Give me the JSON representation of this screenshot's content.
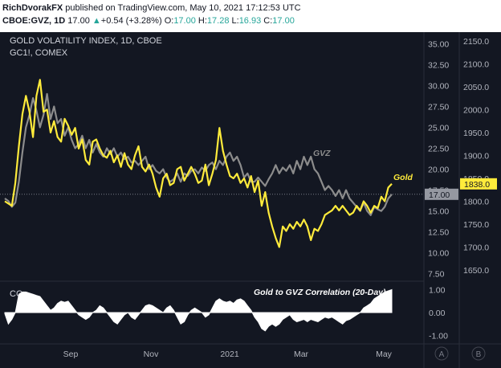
{
  "header": {
    "author": "RichDvorakFX",
    "published": "published on TradingView.com, May 10, 2021 17:12:53 UTC",
    "symbol": "CBOE:GVZ, 1D",
    "last": "17.00",
    "arrow": "▲",
    "change": "+0.54 (+3.28%)",
    "open_label": "O:",
    "open": "17.00",
    "high_label": "H:",
    "high": "17.28",
    "low_label": "L:",
    "low": "16.93",
    "close_label": "C:",
    "close": "17.00"
  },
  "chart_data": {
    "type": "line",
    "title": "GOLD VOLATILITY INDEX, 1D, CBOE",
    "subtitle": "GC1!, COMEX",
    "x_tick_labels": [
      "Sep",
      "Nov",
      "2021",
      "Mar",
      "May"
    ],
    "left_axis_labels": [
      "A",
      "B"
    ],
    "y_left": {
      "range": [
        6.8,
        36.0
      ],
      "tick_labels": [
        "35.00",
        "32.50",
        "30.00",
        "27.50",
        "25.00",
        "22.50",
        "20.00",
        "17.50",
        "15.00",
        "12.50",
        "10.00",
        "7.50"
      ],
      "tick_values": [
        35,
        32.5,
        30,
        27.5,
        25,
        22.5,
        20,
        17.5,
        15,
        12.5,
        10,
        7.5
      ],
      "last_label": "17.00",
      "last_value": 17.0
    },
    "y_right": {
      "range": [
        1629,
        2162
      ],
      "tick_labels": [
        "2150.0",
        "2100.0",
        "2050.0",
        "2000.0",
        "1950.0",
        "1900.0",
        "1850.0",
        "1800.0",
        "1750.0",
        "1700.0",
        "1650.0"
      ],
      "tick_values": [
        2150,
        2100,
        2050,
        2000,
        1950,
        1900,
        1850,
        1800,
        1750,
        1700,
        1650
      ],
      "last_label": "1838.0",
      "last_value": 1838.0
    },
    "series": [
      {
        "name": "GVZ",
        "axis": "left",
        "color": "#8c8c8c",
        "values": [
          16.5,
          16.2,
          15.5,
          16.0,
          18.5,
          22.0,
          25.0,
          26.5,
          28.5,
          27.0,
          25.0,
          26.5,
          29.0,
          26.0,
          27.5,
          25.5,
          26.0,
          24.0,
          25.0,
          23.5,
          22.5,
          23.0,
          24.0,
          22.5,
          23.5,
          22.0,
          23.0,
          22.0,
          21.5,
          22.5,
          21.8,
          22.5,
          21.5,
          22.0,
          21.2,
          21.5,
          20.8,
          21.0,
          20.5,
          21.0,
          21.5,
          20.0,
          20.5,
          19.8,
          19.5,
          20.0,
          19.0,
          18.5,
          18.8,
          19.5,
          18.5,
          19.5,
          19.2,
          19.8,
          20.0,
          19.5,
          20.2,
          19.8,
          20.5,
          20.8,
          20.0,
          21.0,
          20.5,
          21.5,
          22.0,
          21.0,
          21.5,
          20.5,
          19.0,
          19.5,
          18.5,
          18.5,
          19.0,
          18.5,
          18.0,
          18.8,
          19.5,
          20.5,
          19.5,
          20.2,
          19.8,
          20.5,
          19.5,
          21.0,
          20.0,
          21.5,
          20.5,
          21.5,
          20.0,
          19.5,
          18.5,
          17.5,
          18.0,
          17.5,
          16.8,
          17.5,
          16.5,
          17.5,
          16.5,
          16.0,
          15.5,
          15.0,
          16.0,
          15.0,
          14.5,
          15.5,
          15.2,
          15.0,
          15.5,
          16.5,
          17.0
        ]
      },
      {
        "name": "Gold",
        "axis": "right",
        "color": "#ffeb3b",
        "values": [
          1800,
          1795,
          1790,
          1840,
          1920,
          1990,
          2030,
          1995,
          1940,
          2030,
          2065,
          1995,
          2000,
          1950,
          1975,
          1940,
          1930,
          1980,
          1965,
          1945,
          1960,
          1915,
          1935,
          1890,
          1880,
          1930,
          1935,
          1915,
          1900,
          1895,
          1910,
          1885,
          1900,
          1875,
          1905,
          1880,
          1870,
          1900,
          1920,
          1875,
          1865,
          1880,
          1860,
          1830,
          1810,
          1850,
          1860,
          1835,
          1840,
          1870,
          1875,
          1845,
          1860,
          1875,
          1860,
          1840,
          1845,
          1880,
          1835,
          1860,
          1890,
          1960,
          1910,
          1880,
          1855,
          1850,
          1860,
          1840,
          1850,
          1830,
          1855,
          1820,
          1845,
          1790,
          1820,
          1775,
          1745,
          1720,
          1700,
          1745,
          1735,
          1750,
          1740,
          1755,
          1745,
          1760,
          1745,
          1715,
          1740,
          1735,
          1750,
          1770,
          1775,
          1780,
          1790,
          1780,
          1790,
          1780,
          1770,
          1775,
          1790,
          1780,
          1800,
          1790,
          1775,
          1790,
          1785,
          1810,
          1800,
          1830,
          1838
        ]
      },
      {
        "name": "CC",
        "axis": "bottom",
        "color": "#ffffff",
        "values": [
          -0.05,
          -0.5,
          -0.3,
          0.0,
          0.8,
          0.9,
          0.9,
          0.85,
          0.8,
          0.75,
          0.7,
          0.5,
          0.3,
          0.1,
          0.2,
          0.4,
          0.5,
          0.45,
          0.5,
          0.3,
          0.1,
          -0.1,
          -0.2,
          -0.3,
          -0.2,
          0.0,
          0.1,
          0.3,
          0.2,
          0.0,
          -0.2,
          -0.4,
          -0.5,
          -0.3,
          -0.1,
          0.0,
          -0.2,
          -0.3,
          -0.1,
          0.1,
          0.3,
          0.35,
          0.3,
          0.2,
          0.1,
          0.0,
          0.2,
          0.3,
          0.1,
          -0.2,
          -0.5,
          -0.4,
          -0.1,
          0.1,
          0.2,
          0.1,
          0.0,
          -0.2,
          -0.1,
          0.2,
          0.5,
          0.6,
          0.5,
          0.45,
          0.5,
          0.4,
          0.55,
          0.6,
          0.5,
          0.3,
          0.1,
          -0.2,
          -0.4,
          -0.7,
          -0.8,
          -0.6,
          -0.5,
          -0.6,
          -0.5,
          -0.3,
          -0.2,
          -0.1,
          -0.3,
          -0.4,
          -0.35,
          -0.3,
          -0.4,
          -0.3,
          -0.35,
          -0.4,
          -0.3,
          -0.2,
          -0.25,
          -0.2,
          -0.3,
          -0.4,
          -0.5,
          -0.35,
          -0.3,
          -0.2,
          -0.1,
          0.0,
          0.2,
          0.3,
          0.4,
          0.6,
          0.7,
          0.8,
          0.9,
          0.95,
          1.0
        ]
      }
    ],
    "cc_label": "CC",
    "cc_title": "Gold to GVZ Correlation (20-Day)",
    "cc_axis": {
      "range": [
        -1.3,
        1.3
      ],
      "tick_labels": [
        "1.00",
        "0.00",
        "-1.00"
      ],
      "tick_values": [
        1.0,
        0.0,
        -1.0
      ]
    },
    "annotations": [
      {
        "text": "GVZ",
        "series": "GVZ"
      },
      {
        "text": "Gold",
        "series": "Gold"
      }
    ],
    "grid": false
  },
  "colors": {
    "background": "#131722",
    "axis_text": "#b2b5be",
    "gold": "#ffeb3b",
    "gvz": "#8c8c8c",
    "cc": "#ffffff",
    "up": "#26a69a"
  }
}
